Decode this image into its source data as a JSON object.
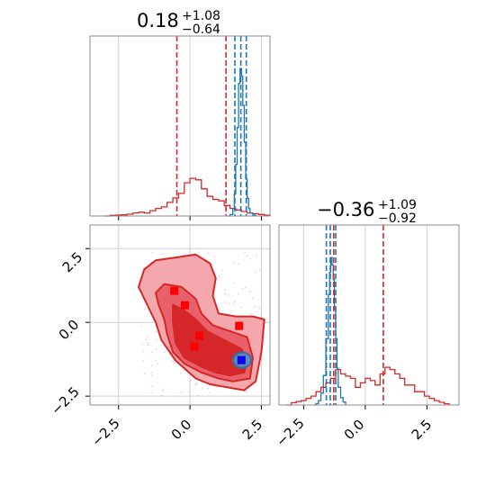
{
  "figure": {
    "title_p1": {
      "center": "0.18",
      "plus": "+1.08",
      "minus": "−0.64"
    },
    "title_p2": {
      "center": "−0.36",
      "plus": "+1.09",
      "minus": "−0.92"
    }
  },
  "chart_data": [
    {
      "type": "line",
      "panel": "marginal-param1",
      "xlim": [
        -3.5,
        2.8
      ],
      "grid": true,
      "series": [
        {
          "color": "#d62728",
          "style": "step",
          "x": [
            -3.0,
            -2.8,
            -2.6,
            -2.4,
            -2.2,
            -2.0,
            -1.8,
            -1.6,
            -1.4,
            -1.2,
            -1.0,
            -0.8,
            -0.6,
            -0.4,
            -0.2,
            0.0,
            0.2,
            0.4,
            0.6,
            0.8,
            1.0,
            1.2,
            1.4,
            1.6,
            1.8,
            2.0,
            2.2,
            2.4,
            2.6,
            2.8
          ],
          "y": [
            0.0,
            0.004,
            0.006,
            0.008,
            0.012,
            0.02,
            0.025,
            0.02,
            0.035,
            0.05,
            0.06,
            0.09,
            0.12,
            0.15,
            0.22,
            0.25,
            0.24,
            0.18,
            0.13,
            0.11,
            0.1,
            0.07,
            0.05,
            0.04,
            0.03,
            0.02,
            0.015,
            0.01,
            0.005,
            0.0
          ]
        },
        {
          "color": "#1f77b4",
          "style": "step",
          "x": [
            1.3,
            1.4,
            1.5,
            1.55,
            1.6,
            1.65,
            1.7,
            1.75,
            1.8,
            1.85,
            1.9,
            1.95,
            2.0,
            2.05,
            2.1,
            2.2,
            2.3
          ],
          "y": [
            0.0,
            0.01,
            0.05,
            0.15,
            0.35,
            0.6,
            0.9,
            1.0,
            0.95,
            0.75,
            0.5,
            0.25,
            0.12,
            0.05,
            0.02,
            0.005,
            0.0
          ]
        }
      ],
      "quantile_lines": [
        {
          "color": "#d62728",
          "x": -0.46
        },
        {
          "color": "#d62728",
          "x": 1.26
        },
        {
          "color": "#1f77b4",
          "x": 1.57
        },
        {
          "color": "#1f77b4",
          "x": 1.78
        },
        {
          "color": "#1f77b4",
          "x": 1.97
        }
      ]
    },
    {
      "type": "line",
      "panel": "marginal-param2",
      "xlim": [
        -3.5,
        3.8
      ],
      "xticks": [
        "−2.5",
        "0.0",
        "2.5"
      ],
      "grid": true,
      "series": [
        {
          "color": "#d62728",
          "style": "step",
          "x": [
            -3.2,
            -3.0,
            -2.8,
            -2.6,
            -2.4,
            -2.2,
            -2.0,
            -1.8,
            -1.6,
            -1.4,
            -1.2,
            -1.0,
            -0.8,
            -0.6,
            -0.4,
            -0.2,
            0.0,
            0.2,
            0.4,
            0.6,
            0.8,
            1.0,
            1.2,
            1.4,
            1.6,
            1.8,
            2.0,
            2.2,
            2.4,
            2.6,
            2.8,
            3.0,
            3.2,
            3.4
          ],
          "y": [
            0.0,
            0.005,
            0.008,
            0.01,
            0.015,
            0.02,
            0.03,
            0.04,
            0.05,
            0.06,
            0.08,
            0.07,
            0.065,
            0.06,
            0.04,
            0.05,
            0.06,
            0.055,
            0.045,
            0.07,
            0.085,
            0.08,
            0.07,
            0.06,
            0.045,
            0.045,
            0.03,
            0.03,
            0.02,
            0.015,
            0.01,
            0.006,
            0.003,
            0.0
          ]
        },
        {
          "color": "#1f77b4",
          "style": "step",
          "x": [
            -2.1,
            -2.0,
            -1.9,
            -1.8,
            -1.7,
            -1.6,
            -1.5,
            -1.45,
            -1.4,
            -1.35,
            -1.3,
            -1.25,
            -1.2,
            -1.15,
            -1.1,
            -1.0,
            -0.9,
            -0.8
          ],
          "y": [
            0.0,
            0.01,
            0.03,
            0.08,
            0.2,
            0.45,
            0.75,
            0.9,
            1.0,
            0.95,
            0.85,
            0.65,
            0.45,
            0.25,
            0.12,
            0.05,
            0.02,
            0.0
          ]
        }
      ],
      "quantile_lines": [
        {
          "color": "#d62728",
          "x": -1.28
        },
        {
          "color": "#d62728",
          "x": 0.73
        },
        {
          "color": "#1f77b4",
          "x": -1.58
        },
        {
          "color": "#1f77b4",
          "x": -1.42
        },
        {
          "color": "#1f77b4",
          "x": -1.2
        }
      ]
    },
    {
      "type": "scatter",
      "panel": "joint-param1-param2",
      "xlim": [
        -3.5,
        2.8
      ],
      "ylim": [
        -2.8,
        3.3
      ],
      "xticks": [
        "−2.5",
        "0.0",
        "2.5"
      ],
      "yticks": [
        "−2.5",
        "0.0",
        "2.5"
      ],
      "grid": true,
      "red_contours": [
        {
          "level": "outer",
          "fill": "#f4a7ad",
          "points": [
            [
              -1.6,
              1.8
            ],
            [
              -1.2,
              2.1
            ],
            [
              -0.5,
              2.2
            ],
            [
              0.2,
              2.3
            ],
            [
              0.7,
              2.0
            ],
            [
              0.9,
              1.5
            ],
            [
              0.8,
              0.9
            ],
            [
              1.0,
              0.3
            ],
            [
              1.6,
              0.2
            ],
            [
              2.2,
              0.2
            ],
            [
              2.6,
              0.1
            ],
            [
              2.5,
              -1.0
            ],
            [
              2.3,
              -2.0
            ],
            [
              1.9,
              -2.3
            ],
            [
              1.3,
              -2.2
            ],
            [
              0.7,
              -2.1
            ],
            [
              0.2,
              -1.9
            ],
            [
              -0.5,
              -1.3
            ],
            [
              -1.0,
              -0.6
            ],
            [
              -1.2,
              0.0
            ],
            [
              -1.5,
              0.6
            ],
            [
              -1.8,
              1.2
            ]
          ]
        },
        {
          "level": "middle",
          "fill": "#e8606a",
          "points": [
            [
              -1.2,
              1.0
            ],
            [
              -0.9,
              1.3
            ],
            [
              -0.3,
              1.2
            ],
            [
              0.2,
              0.8
            ],
            [
              0.4,
              0.3
            ],
            [
              0.8,
              -0.1
            ],
            [
              1.4,
              -0.3
            ],
            [
              2.0,
              -0.5
            ],
            [
              2.2,
              -1.2
            ],
            [
              2.1,
              -1.9
            ],
            [
              1.5,
              -2.0
            ],
            [
              1.0,
              -1.9
            ],
            [
              0.4,
              -1.7
            ],
            [
              -0.2,
              -1.4
            ],
            [
              -0.6,
              -1.0
            ],
            [
              -0.8,
              -0.4
            ],
            [
              -0.9,
              0.1
            ],
            [
              -1.1,
              0.6
            ]
          ]
        },
        {
          "level": "inner",
          "fill": "#d62728",
          "points": [
            [
              -0.6,
              0.6
            ],
            [
              -0.2,
              0.4
            ],
            [
              0.2,
              0.1
            ],
            [
              0.6,
              -0.3
            ],
            [
              1.2,
              -0.6
            ],
            [
              1.8,
              -0.9
            ],
            [
              2.0,
              -1.3
            ],
            [
              1.9,
              -1.7
            ],
            [
              1.4,
              -1.8
            ],
            [
              0.9,
              -1.7
            ],
            [
              0.4,
              -1.5
            ],
            [
              -0.2,
              -1.2
            ],
            [
              -0.5,
              -0.7
            ],
            [
              -0.6,
              0.0
            ]
          ]
        }
      ],
      "blue_contour": {
        "center": [
          1.82,
          -1.28
        ],
        "rx": 0.32,
        "ry": 0.26,
        "color": "#1f77b4"
      },
      "red_markers": [
        [
          -0.55,
          1.07
        ],
        [
          -0.18,
          0.58
        ],
        [
          0.33,
          -0.45
        ],
        [
          0.15,
          -0.82
        ],
        [
          1.72,
          -0.12
        ]
      ],
      "blue_marker": [
        1.8,
        -1.28
      ]
    }
  ]
}
